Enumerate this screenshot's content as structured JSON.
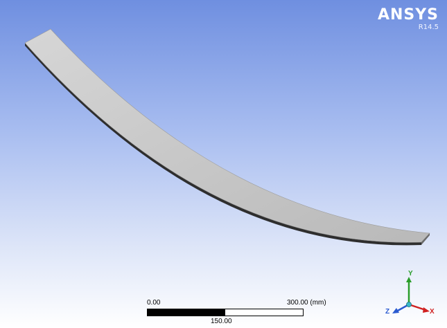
{
  "logo": {
    "name": "ANSYS",
    "version": "R14.5"
  },
  "scale_bar": {
    "min_label": "0.00",
    "mid_label": "150.00",
    "max_label": "300.00 (mm)"
  },
  "triad": {
    "x_label": "X",
    "y_label": "Y",
    "z_label": "Z",
    "x_color": "#d02020",
    "y_color": "#2a9d2a",
    "z_color": "#2a5ad0"
  },
  "colors": {
    "background_top": "#6f8fe0",
    "background_bottom": "#ffffff",
    "model_face": "#c8c8c8",
    "model_edge": "#3a3a3a"
  }
}
